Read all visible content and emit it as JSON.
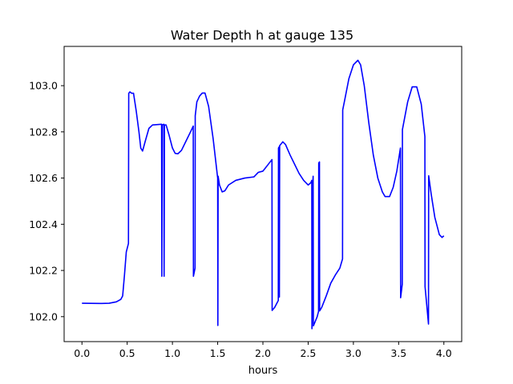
{
  "chart_data": {
    "type": "line",
    "title": "Water Depth h at gauge 135",
    "xlabel": "hours",
    "ylabel": "",
    "xlim": [
      -0.197,
      4.197
    ],
    "ylim": [
      101.892,
      103.17
    ],
    "xticks": [
      0.0,
      0.5,
      1.0,
      1.5,
      2.0,
      2.5,
      3.0,
      3.5,
      4.0
    ],
    "xtick_labels": [
      "0.0",
      "0.5",
      "1.0",
      "1.5",
      "2.0",
      "2.5",
      "3.0",
      "3.5",
      "4.0"
    ],
    "yticks": [
      102.0,
      102.2,
      102.4,
      102.6,
      102.8,
      103.0
    ],
    "ytick_labels": [
      "102.0",
      "102.2",
      "102.4",
      "102.6",
      "102.8",
      "103.0"
    ],
    "grid": false,
    "legend": "none",
    "series": [
      {
        "color": "#0000ff",
        "points": [
          [
            0.0,
            102.058
          ],
          [
            0.2,
            102.057
          ],
          [
            0.3,
            102.058
          ],
          [
            0.38,
            102.064
          ],
          [
            0.43,
            102.075
          ],
          [
            0.45,
            102.09
          ],
          [
            0.47,
            102.18
          ],
          [
            0.49,
            102.28
          ],
          [
            0.514,
            102.317
          ],
          [
            0.517,
            102.967
          ],
          [
            0.53,
            102.973
          ],
          [
            0.55,
            102.967
          ],
          [
            0.57,
            102.967
          ],
          [
            0.6,
            102.89
          ],
          [
            0.63,
            102.8
          ],
          [
            0.65,
            102.73
          ],
          [
            0.67,
            102.717
          ],
          [
            0.7,
            102.76
          ],
          [
            0.74,
            102.815
          ],
          [
            0.78,
            102.83
          ],
          [
            0.88,
            102.833
          ],
          [
            0.883,
            102.175
          ],
          [
            0.887,
            102.83
          ],
          [
            0.905,
            102.833
          ],
          [
            0.908,
            102.175
          ],
          [
            0.912,
            102.83
          ],
          [
            0.93,
            102.83
          ],
          [
            0.96,
            102.79
          ],
          [
            1.0,
            102.73
          ],
          [
            1.03,
            102.707
          ],
          [
            1.06,
            102.705
          ],
          [
            1.1,
            102.72
          ],
          [
            1.15,
            102.76
          ],
          [
            1.2,
            102.8
          ],
          [
            1.23,
            102.825
          ],
          [
            1.232,
            102.175
          ],
          [
            1.25,
            102.21
          ],
          [
            1.252,
            102.87
          ],
          [
            1.27,
            102.93
          ],
          [
            1.3,
            102.955
          ],
          [
            1.33,
            102.968
          ],
          [
            1.36,
            102.968
          ],
          [
            1.4,
            102.91
          ],
          [
            1.45,
            102.77
          ],
          [
            1.5,
            102.6
          ],
          [
            1.502,
            101.962
          ],
          [
            1.505,
            102.608
          ],
          [
            1.52,
            102.57
          ],
          [
            1.55,
            102.54
          ],
          [
            1.58,
            102.545
          ],
          [
            1.62,
            102.57
          ],
          [
            1.7,
            102.59
          ],
          [
            1.8,
            102.6
          ],
          [
            1.9,
            102.605
          ],
          [
            1.95,
            102.625
          ],
          [
            2.0,
            102.63
          ],
          [
            2.03,
            102.645
          ],
          [
            2.07,
            102.665
          ],
          [
            2.1,
            102.68
          ],
          [
            2.102,
            102.027
          ],
          [
            2.13,
            102.04
          ],
          [
            2.17,
            102.07
          ],
          [
            2.172,
            102.73
          ],
          [
            2.18,
            102.735
          ],
          [
            2.182,
            102.085
          ],
          [
            2.185,
            102.74
          ],
          [
            2.22,
            102.757
          ],
          [
            2.25,
            102.745
          ],
          [
            2.3,
            102.7
          ],
          [
            2.35,
            102.66
          ],
          [
            2.4,
            102.62
          ],
          [
            2.45,
            102.59
          ],
          [
            2.5,
            102.57
          ],
          [
            2.53,
            102.58
          ],
          [
            2.54,
            102.59
          ],
          [
            2.542,
            101.948
          ],
          [
            2.553,
            102.59
          ],
          [
            2.555,
            102.608
          ],
          [
            2.558,
            101.96
          ],
          [
            2.6,
            102.0
          ],
          [
            2.615,
            102.023
          ],
          [
            2.617,
            102.665
          ],
          [
            2.625,
            102.67
          ],
          [
            2.627,
            102.025
          ],
          [
            2.65,
            102.04
          ],
          [
            2.7,
            102.09
          ],
          [
            2.75,
            102.145
          ],
          [
            2.8,
            102.18
          ],
          [
            2.85,
            102.21
          ],
          [
            2.88,
            102.25
          ],
          [
            2.882,
            102.895
          ],
          [
            2.9,
            102.93
          ],
          [
            2.95,
            103.03
          ],
          [
            3.0,
            103.09
          ],
          [
            3.05,
            103.11
          ],
          [
            3.08,
            103.09
          ],
          [
            3.12,
            103.0
          ],
          [
            3.17,
            102.84
          ],
          [
            3.22,
            102.7
          ],
          [
            3.27,
            102.6
          ],
          [
            3.32,
            102.54
          ],
          [
            3.35,
            102.52
          ],
          [
            3.4,
            102.52
          ],
          [
            3.44,
            102.56
          ],
          [
            3.48,
            102.63
          ],
          [
            3.52,
            102.73
          ],
          [
            3.522,
            102.082
          ],
          [
            3.54,
            102.14
          ],
          [
            3.542,
            102.81
          ],
          [
            3.6,
            102.93
          ],
          [
            3.65,
            102.995
          ],
          [
            3.7,
            102.995
          ],
          [
            3.75,
            102.92
          ],
          [
            3.79,
            102.78
          ],
          [
            3.792,
            102.13
          ],
          [
            3.83,
            101.968
          ],
          [
            3.832,
            102.61
          ],
          [
            3.86,
            102.53
          ],
          [
            3.9,
            102.43
          ],
          [
            3.95,
            102.355
          ],
          [
            3.98,
            102.343
          ],
          [
            4.0,
            102.35
          ]
        ]
      }
    ]
  }
}
